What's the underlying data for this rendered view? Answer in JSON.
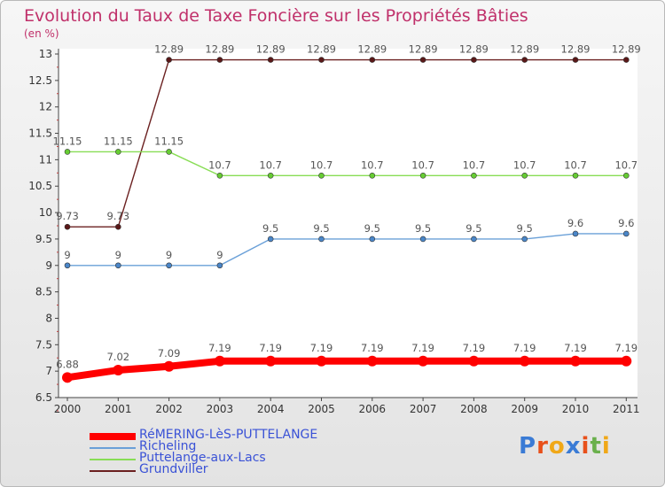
{
  "title": "Evolution du Taux de Taxe Foncière sur les Propriétés Bâties",
  "unit_label": "(en %)",
  "brand": "Proxiti",
  "chart_data": {
    "type": "line",
    "categories": [
      "2000",
      "2001",
      "2002",
      "2003",
      "2004",
      "2005",
      "2006",
      "2007",
      "2008",
      "2009",
      "2010",
      "2011"
    ],
    "ylim": [
      6.5,
      13
    ],
    "yticks": [
      "6.5",
      "7",
      "7.5",
      "8",
      "8.5",
      "9",
      "9.5",
      "10",
      "10.5",
      "11",
      "11.5",
      "12",
      "12.5",
      "13"
    ],
    "series": [
      {
        "name": "RéMERING-LèS-PUTTELANGE",
        "color": "#ff0000",
        "marker": "#ff0000",
        "values": [
          6.88,
          7.02,
          7.09,
          7.19,
          7.19,
          7.19,
          7.19,
          7.19,
          7.19,
          7.19,
          7.19,
          7.19
        ],
        "labels": [
          "6.88",
          "7.02",
          "7.09",
          "7.19",
          "7.19",
          "7.19",
          "7.19",
          "7.19",
          "7.19",
          "7.19",
          "7.19",
          "7.19"
        ]
      },
      {
        "name": "Richeling",
        "color": "#6aa0d8",
        "marker": "#4a86c8",
        "values": [
          9,
          9,
          9,
          9,
          9.5,
          9.5,
          9.5,
          9.5,
          9.5,
          9.5,
          9.6,
          9.6
        ],
        "labels": [
          "9",
          "9",
          "9",
          "9",
          "9.5",
          "9.5",
          "9.5",
          "9.5",
          "9.5",
          "9.5",
          "9.6",
          "9.6"
        ]
      },
      {
        "name": "Puttelange-aux-Lacs",
        "color": "#88dd55",
        "marker": "#66cc33",
        "values": [
          11.15,
          11.15,
          11.15,
          10.7,
          10.7,
          10.7,
          10.7,
          10.7,
          10.7,
          10.7,
          10.7,
          10.7
        ],
        "labels": [
          "11.15",
          "11.15",
          "11.15",
          "10.7",
          "10.7",
          "10.7",
          "10.7",
          "10.7",
          "10.7",
          "10.7",
          "10.7",
          "10.7"
        ]
      },
      {
        "name": "Grundviller",
        "color": "#6b2020",
        "marker": "#5a1818",
        "values": [
          9.73,
          9.73,
          12.89,
          12.89,
          12.89,
          12.89,
          12.89,
          12.89,
          12.89,
          12.89,
          12.89,
          12.89
        ],
        "labels": [
          "9.73",
          "9.73",
          "12.89",
          "12.89",
          "12.89",
          "12.89",
          "12.89",
          "12.89",
          "12.89",
          "12.89",
          "12.89",
          "12.89"
        ]
      }
    ]
  }
}
